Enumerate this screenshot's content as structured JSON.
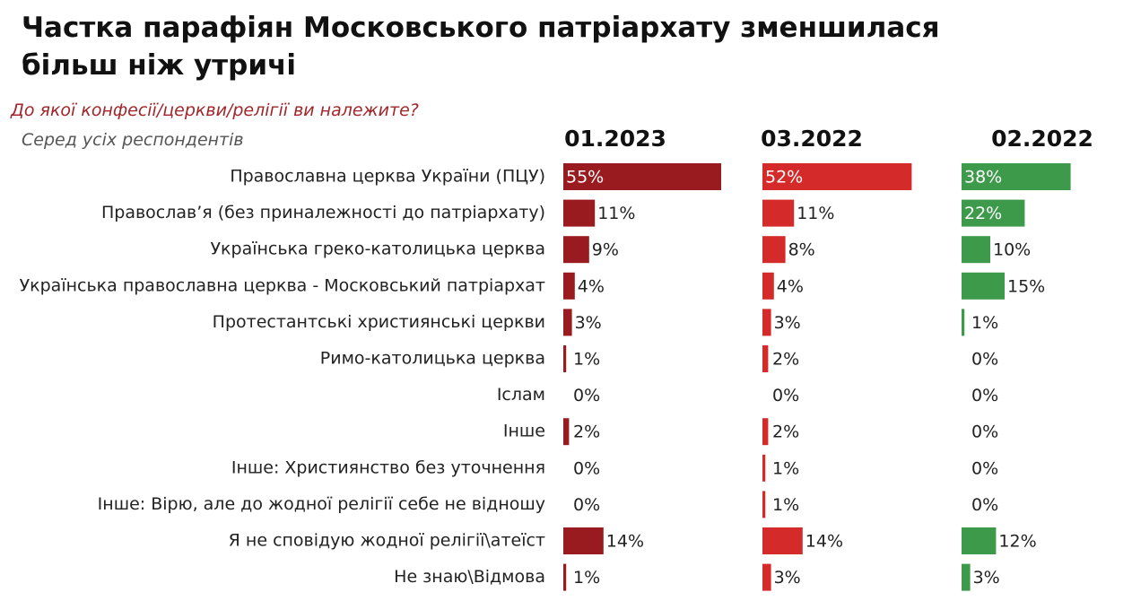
{
  "chart_data": {
    "type": "bar",
    "orientation": "horizontal",
    "title": "Частка парафіян Московського патріархату зменшилася більш ніж утричі",
    "subtitle": "До якої конфесії/церкви/релігії ви належите?",
    "note": "Серед усіх респондентів",
    "categories": [
      "Православна церква України (ПЦУ)",
      "Православ’я (без приналежності до патріархату)",
      "Українська греко-католицька церква",
      "Українська православна церква - Московський патріархат",
      "Протестантські християнські церкви",
      "Римо-католицька церква",
      "Іслам",
      "Інше",
      "Інше: Християнство без уточнення",
      "Інше: Вірю, але до жодної релігії  себе не відношу",
      "Я не сповідую жодної релігії\\атеїст",
      "Не знаю\\Відмова"
    ],
    "series": [
      {
        "name": "01.2023",
        "color": "#9a1b1f",
        "values": [
          55,
          11,
          9,
          4,
          3,
          1,
          0,
          2,
          0,
          0,
          14,
          1
        ],
        "value_labels": [
          "55%",
          "11%",
          "9%",
          "4%",
          "3%",
          "1%",
          "0%",
          "2%",
          "0%",
          "0%",
          "14%",
          "1%"
        ]
      },
      {
        "name": "03.2022",
        "color": "#d42a2a",
        "values": [
          52,
          11,
          8,
          4,
          3,
          2,
          0,
          2,
          1,
          1,
          14,
          3
        ],
        "value_labels": [
          "52%",
          "11%",
          "8%",
          "4%",
          "3%",
          "2%",
          "0%",
          "2%",
          "1%",
          "1%",
          "14%",
          "3%"
        ]
      },
      {
        "name": "02.2022",
        "color": "#3d9a4b",
        "values": [
          38,
          22,
          10,
          15,
          1,
          0,
          0,
          0,
          0,
          0,
          12,
          3
        ],
        "value_labels": [
          "38%",
          "22%",
          "10%",
          "15%",
          "1%",
          "0%",
          "0%",
          "0%",
          "0%",
          "0%",
          "12%",
          "3%"
        ]
      }
    ]
  }
}
